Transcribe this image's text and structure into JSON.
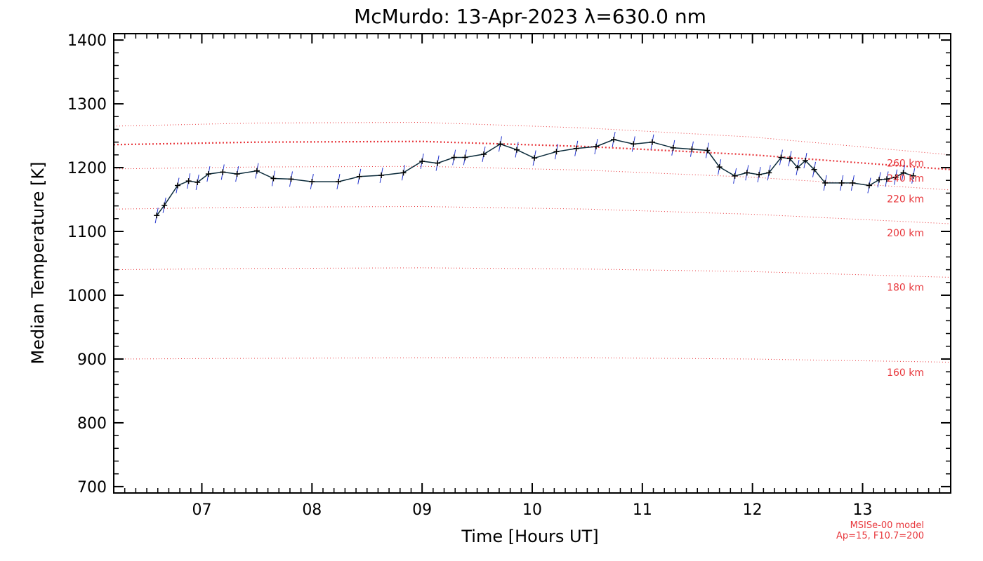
{
  "chart_data": {
    "type": "line",
    "title": "McMurdo: 13-Apr-2023 λ=630.0 nm",
    "xlabel": "Time [Hours UT]",
    "ylabel": "Median Temperature [K]",
    "xlim": [
      6.2,
      13.8
    ],
    "ylim": [
      690,
      1410
    ],
    "x_ticks": [
      7,
      8,
      9,
      10,
      11,
      12,
      13
    ],
    "x_tick_labels": [
      "07",
      "08",
      "09",
      "10",
      "11",
      "12",
      "13"
    ],
    "y_ticks": [
      700,
      800,
      900,
      1000,
      1100,
      1200,
      1300,
      1400
    ],
    "y_tick_labels": [
      "700",
      "800",
      "900",
      "1000",
      "1100",
      "1200",
      "1300",
      "1400"
    ],
    "series": [
      {
        "name": "Median Temperature",
        "color": "#0a2a3a",
        "error_color": "#2233cc",
        "x": [
          6.59,
          6.66,
          6.78,
          6.88,
          6.96,
          7.06,
          7.19,
          7.32,
          7.5,
          7.65,
          7.81,
          8.0,
          8.24,
          8.43,
          8.63,
          8.83,
          9.0,
          9.14,
          9.29,
          9.39,
          9.56,
          9.71,
          9.86,
          10.02,
          10.22,
          10.4,
          10.58,
          10.74,
          10.92,
          11.09,
          11.28,
          11.45,
          11.59,
          11.7,
          11.84,
          11.95,
          12.06,
          12.15,
          12.26,
          12.34,
          12.41,
          12.48,
          12.56,
          12.66,
          12.81,
          12.91,
          13.06,
          13.15,
          13.22,
          13.3,
          13.37,
          13.46
        ],
        "y": [
          1125,
          1141,
          1172,
          1179,
          1177,
          1190,
          1193,
          1190,
          1195,
          1183,
          1182,
          1178,
          1178,
          1186,
          1188,
          1192,
          1210,
          1207,
          1216,
          1216,
          1221,
          1237,
          1228,
          1215,
          1225,
          1230,
          1233,
          1244,
          1237,
          1240,
          1231,
          1229,
          1227,
          1201,
          1187,
          1192,
          1189,
          1192,
          1216,
          1214,
          1200,
          1211,
          1197,
          1176,
          1176,
          1176,
          1172,
          1181,
          1182,
          1185,
          1192,
          1187
        ],
        "error": [
          12,
          12,
          12,
          12,
          12,
          12,
          12,
          12,
          12,
          12,
          12,
          12,
          12,
          12,
          12,
          12,
          12,
          12,
          12,
          12,
          12,
          12,
          12,
          12,
          12,
          12,
          12,
          12,
          12,
          12,
          12,
          12,
          12,
          12,
          12,
          12,
          12,
          12,
          12,
          12,
          12,
          12,
          12,
          12,
          12,
          12,
          12,
          12,
          12,
          12,
          12,
          12
        ]
      }
    ],
    "model_curves": [
      {
        "label": "260 km",
        "color": "#e8383d",
        "x": [
          6.2,
          7.5,
          9.0,
          10.5,
          12.0,
          13.8
        ],
        "y": [
          1265,
          1270,
          1271,
          1262,
          1248,
          1220
        ]
      },
      {
        "label": "240 km",
        "color": "#e8383d",
        "x": [
          6.2,
          7.5,
          9.0,
          10.5,
          12.0,
          13.8
        ],
        "y": [
          1236,
          1240,
          1241,
          1233,
          1220,
          1197
        ]
      },
      {
        "label": "220 km",
        "color": "#e8383d",
        "x": [
          6.2,
          7.5,
          9.0,
          10.5,
          12.0,
          13.8
        ],
        "y": [
          1198,
          1201,
          1202,
          1196,
          1185,
          1165
        ]
      },
      {
        "label": "200 km",
        "color": "#e8383d",
        "x": [
          6.2,
          7.5,
          9.0,
          10.5,
          12.0,
          13.8
        ],
        "y": [
          1135,
          1138,
          1139,
          1135,
          1127,
          1112
        ]
      },
      {
        "label": "180 km",
        "color": "#e8383d",
        "x": [
          6.2,
          7.5,
          9.0,
          10.5,
          12.0,
          13.8
        ],
        "y": [
          1040,
          1042,
          1043,
          1041,
          1037,
          1028
        ]
      },
      {
        "label": "160 km",
        "color": "#e8383d",
        "x": [
          6.2,
          7.5,
          9.0,
          10.5,
          12.0,
          13.8
        ],
        "y": [
          900,
          901,
          902,
          902,
          900,
          895
        ]
      }
    ],
    "model_note": [
      "MSISe-00 model",
      "Ap=15, F10.7=200"
    ]
  }
}
